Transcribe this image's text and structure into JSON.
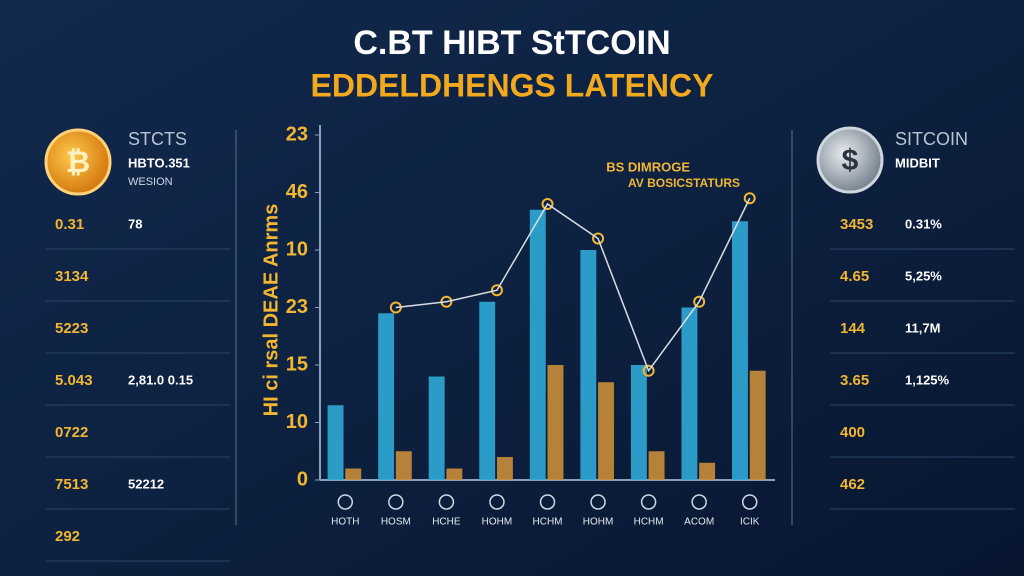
{
  "header": {
    "title": "C.BT HIBT StTCOIN",
    "subtitle": "EDDELDHENGS LATENCY"
  },
  "left_panel": {
    "name": "STCTS",
    "code": "HBTO.351",
    "note": "WESION",
    "rows": [
      [
        "0.31",
        "78"
      ],
      [
        "3134"
      ],
      [
        "5223"
      ],
      [
        "5.043",
        "2,81.0 0.15"
      ],
      [
        "0722"
      ],
      [
        "7513",
        "52212"
      ],
      [
        "292"
      ]
    ]
  },
  "right_panel": {
    "name": "SITCOIN",
    "code": "MIDBIT",
    "rows": [
      [
        "3453",
        "0.31%"
      ],
      [
        "4.65",
        "5,25%"
      ],
      [
        "144",
        "11,7M"
      ],
      [
        "3.65",
        "1,125%"
      ],
      [
        "400"
      ],
      [
        "462"
      ]
    ]
  },
  "chart_data": {
    "type": "bar",
    "annotation": [
      "BS DIMROGE",
      "AV BOSICSTATURS"
    ],
    "y_label": "HI ci rsal DEAE Anrms",
    "categories": [
      "HOTH",
      "HOSM",
      "HCHE",
      "HOHM",
      "HCHM",
      "HOHM",
      "HCHM",
      "ACOM",
      "ICIK"
    ],
    "series": [
      {
        "name": "blue",
        "color": "#2fa8d6",
        "values": [
          13,
          29,
          18,
          31,
          47,
          40,
          20,
          30,
          45
        ]
      },
      {
        "name": "gold",
        "color": "#c98d3a",
        "values": [
          2,
          5,
          2,
          4,
          20,
          17,
          5,
          3,
          19
        ]
      },
      {
        "name": "trend",
        "type": "line",
        "color": "#d8dde6",
        "values": [
          null,
          30,
          31,
          33,
          48,
          42,
          19,
          31,
          49
        ]
      }
    ],
    "ylim": [
      0,
      60
    ],
    "yticks": [
      0,
      10,
      {
        "value": 20,
        "label": "15"
      },
      {
        "value": 30,
        "label": "23"
      },
      {
        "value": 40,
        "label": "10"
      },
      {
        "value": 50,
        "label": "46"
      },
      {
        "value": 60,
        "label": "23"
      }
    ]
  }
}
